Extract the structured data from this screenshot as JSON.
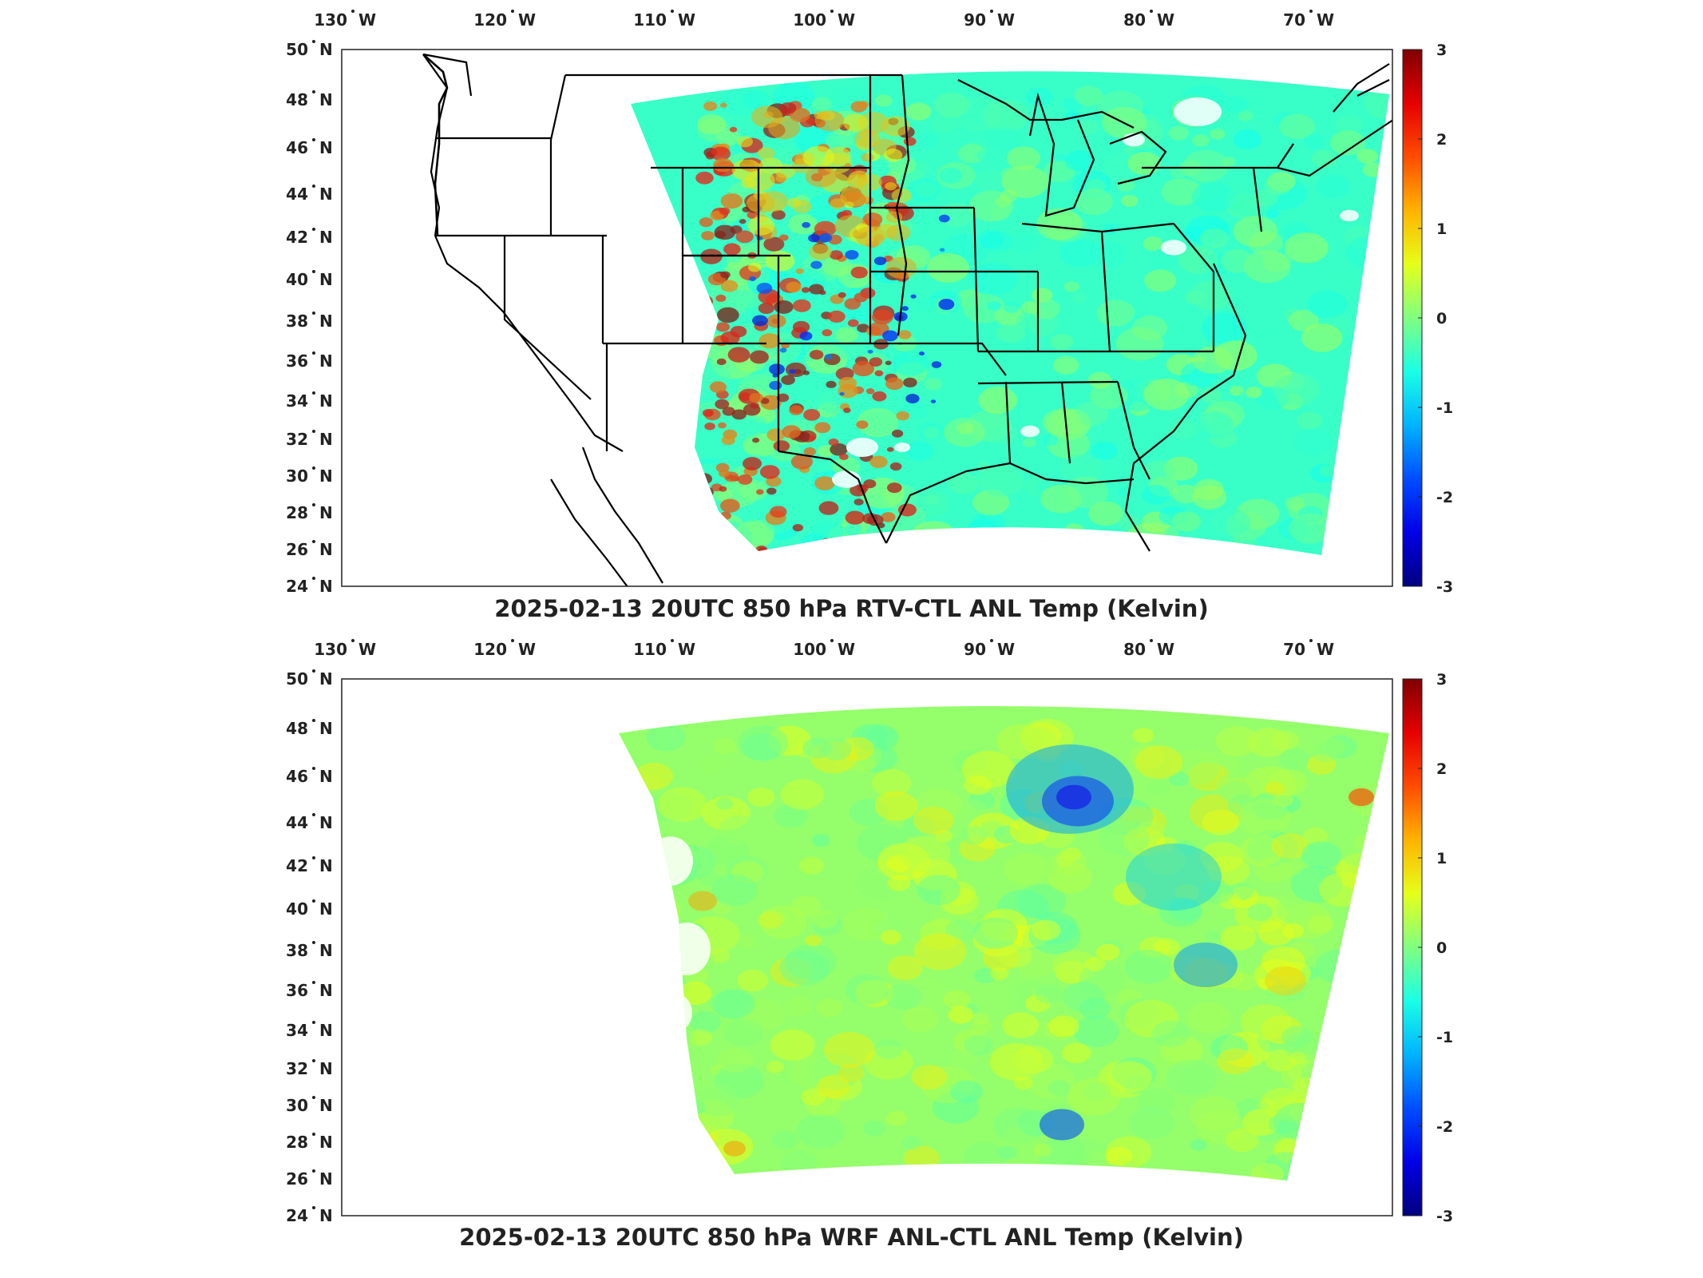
{
  "maps": [
    {
      "title": "2025-02-13 20UTC 850 hPa RTV-CTL ANL Temp (Kelvin)",
      "variant": "rtv",
      "lon_ticks": [
        {
          "deg": "130",
          "hemi": "W"
        },
        {
          "deg": "120",
          "hemi": "W"
        },
        {
          "deg": "110",
          "hemi": "W"
        },
        {
          "deg": "100",
          "hemi": "W"
        },
        {
          "deg": "90",
          "hemi": "W"
        },
        {
          "deg": "80",
          "hemi": "W"
        },
        {
          "deg": "70",
          "hemi": "W"
        }
      ],
      "lat_ticks": [
        {
          "deg": "50",
          "hemi": "N"
        },
        {
          "deg": "48",
          "hemi": "N"
        },
        {
          "deg": "46",
          "hemi": "N"
        },
        {
          "deg": "44",
          "hemi": "N"
        },
        {
          "deg": "42",
          "hemi": "N"
        },
        {
          "deg": "40",
          "hemi": "N"
        },
        {
          "deg": "38",
          "hemi": "N"
        },
        {
          "deg": "36",
          "hemi": "N"
        },
        {
          "deg": "34",
          "hemi": "N"
        },
        {
          "deg": "32",
          "hemi": "N"
        },
        {
          "deg": "30",
          "hemi": "N"
        },
        {
          "deg": "28",
          "hemi": "N"
        },
        {
          "deg": "26",
          "hemi": "N"
        },
        {
          "deg": "24",
          "hemi": "N"
        }
      ],
      "colorbar": {
        "min": -3,
        "max": 3,
        "tick_labels": [
          "3",
          "2",
          "1",
          "0",
          "-1",
          "-2",
          "-3"
        ],
        "colormap": "jet"
      }
    },
    {
      "title": "2025-02-13 20UTC 850 hPa WRF ANL-CTL ANL Temp (Kelvin)",
      "variant": "wrf",
      "lon_ticks": [
        {
          "deg": "130",
          "hemi": "W"
        },
        {
          "deg": "120",
          "hemi": "W"
        },
        {
          "deg": "110",
          "hemi": "W"
        },
        {
          "deg": "100",
          "hemi": "W"
        },
        {
          "deg": "90",
          "hemi": "W"
        },
        {
          "deg": "80",
          "hemi": "W"
        },
        {
          "deg": "70",
          "hemi": "W"
        }
      ],
      "lat_ticks": [
        {
          "deg": "50",
          "hemi": "N"
        },
        {
          "deg": "48",
          "hemi": "N"
        },
        {
          "deg": "46",
          "hemi": "N"
        },
        {
          "deg": "44",
          "hemi": "N"
        },
        {
          "deg": "42",
          "hemi": "N"
        },
        {
          "deg": "40",
          "hemi": "N"
        },
        {
          "deg": "38",
          "hemi": "N"
        },
        {
          "deg": "36",
          "hemi": "N"
        },
        {
          "deg": "34",
          "hemi": "N"
        },
        {
          "deg": "32",
          "hemi": "N"
        },
        {
          "deg": "30",
          "hemi": "N"
        },
        {
          "deg": "28",
          "hemi": "N"
        },
        {
          "deg": "26",
          "hemi": "N"
        },
        {
          "deg": "24",
          "hemi": "N"
        }
      ],
      "colorbar": {
        "min": -3,
        "max": 3,
        "tick_labels": [
          "3",
          "2",
          "1",
          "0",
          "-1",
          "-2",
          "-3"
        ],
        "colormap": "jet"
      }
    }
  ]
}
